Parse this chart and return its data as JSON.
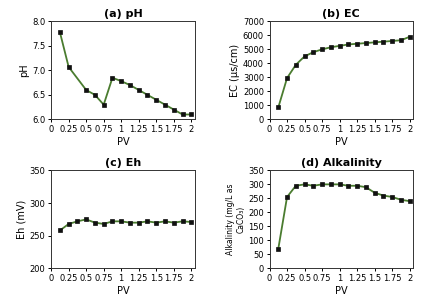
{
  "pH": {
    "pv": [
      0.125,
      0.25,
      0.5,
      0.625,
      0.75,
      0.875,
      1.0,
      1.125,
      1.25,
      1.375,
      1.5,
      1.625,
      1.75,
      1.875,
      2.0
    ],
    "values": [
      7.78,
      7.07,
      6.6,
      6.5,
      6.3,
      6.85,
      6.78,
      6.7,
      6.6,
      6.5,
      6.4,
      6.3,
      6.2,
      6.1,
      6.1
    ],
    "title": "(a) pH",
    "ylabel": "pH",
    "ylim": [
      6.0,
      8.0
    ],
    "yticks": [
      6.0,
      6.5,
      7.0,
      7.5,
      8.0
    ]
  },
  "EC": {
    "pv": [
      0.125,
      0.25,
      0.375,
      0.5,
      0.625,
      0.75,
      0.875,
      1.0,
      1.125,
      1.25,
      1.375,
      1.5,
      1.625,
      1.75,
      1.875,
      2.0
    ],
    "values": [
      850,
      2950,
      3900,
      4500,
      4800,
      5000,
      5150,
      5250,
      5350,
      5400,
      5450,
      5500,
      5550,
      5600,
      5650,
      5900
    ],
    "title": "(b) EC",
    "ylabel": "EC (μs/cm)",
    "ylim": [
      0,
      7000
    ],
    "yticks": [
      0,
      1000,
      2000,
      3000,
      4000,
      5000,
      6000,
      7000
    ]
  },
  "Eh": {
    "pv": [
      0.125,
      0.25,
      0.375,
      0.5,
      0.625,
      0.75,
      0.875,
      1.0,
      1.125,
      1.25,
      1.375,
      1.5,
      1.625,
      1.75,
      1.875,
      2.0
    ],
    "values": [
      258,
      268,
      272,
      275,
      270,
      268,
      272,
      272,
      270,
      270,
      272,
      270,
      272,
      270,
      272,
      271
    ],
    "title": "(c) Eh",
    "ylabel": "Eh (mV)",
    "ylim": [
      200,
      350
    ],
    "yticks": [
      200,
      250,
      300,
      350
    ]
  },
  "Alkalinity": {
    "pv": [
      0.125,
      0.25,
      0.375,
      0.5,
      0.625,
      0.75,
      0.875,
      1.0,
      1.125,
      1.25,
      1.375,
      1.5,
      1.625,
      1.75,
      1.875,
      2.0
    ],
    "values": [
      70,
      255,
      295,
      300,
      295,
      300,
      300,
      300,
      295,
      295,
      290,
      270,
      260,
      255,
      245,
      240
    ],
    "title": "(d) Alkalinity",
    "ylabel": "Alkalinity (mg/L as\nCaCO₃)",
    "ylim": [
      0,
      350
    ],
    "yticks": [
      0,
      50,
      100,
      150,
      200,
      250,
      300,
      350
    ]
  },
  "line_color": "#4a7c2f",
  "marker": "s",
  "markersize": 3.0,
  "linewidth": 1.3,
  "markerfacecolor": "#111111",
  "markeredgecolor": "#111111",
  "xticks": [
    0,
    0.25,
    0.5,
    0.75,
    1.0,
    1.25,
    1.5,
    1.75,
    2.0
  ],
  "xticklabels": [
    "0",
    "0.25",
    "0.5",
    "0.75",
    "1",
    "1.25",
    "1.5",
    "1.75",
    "2"
  ],
  "xlabel": "PV",
  "bg_color": "#ffffff",
  "title_fontsize": 8,
  "label_fontsize": 7,
  "tick_fontsize": 6
}
